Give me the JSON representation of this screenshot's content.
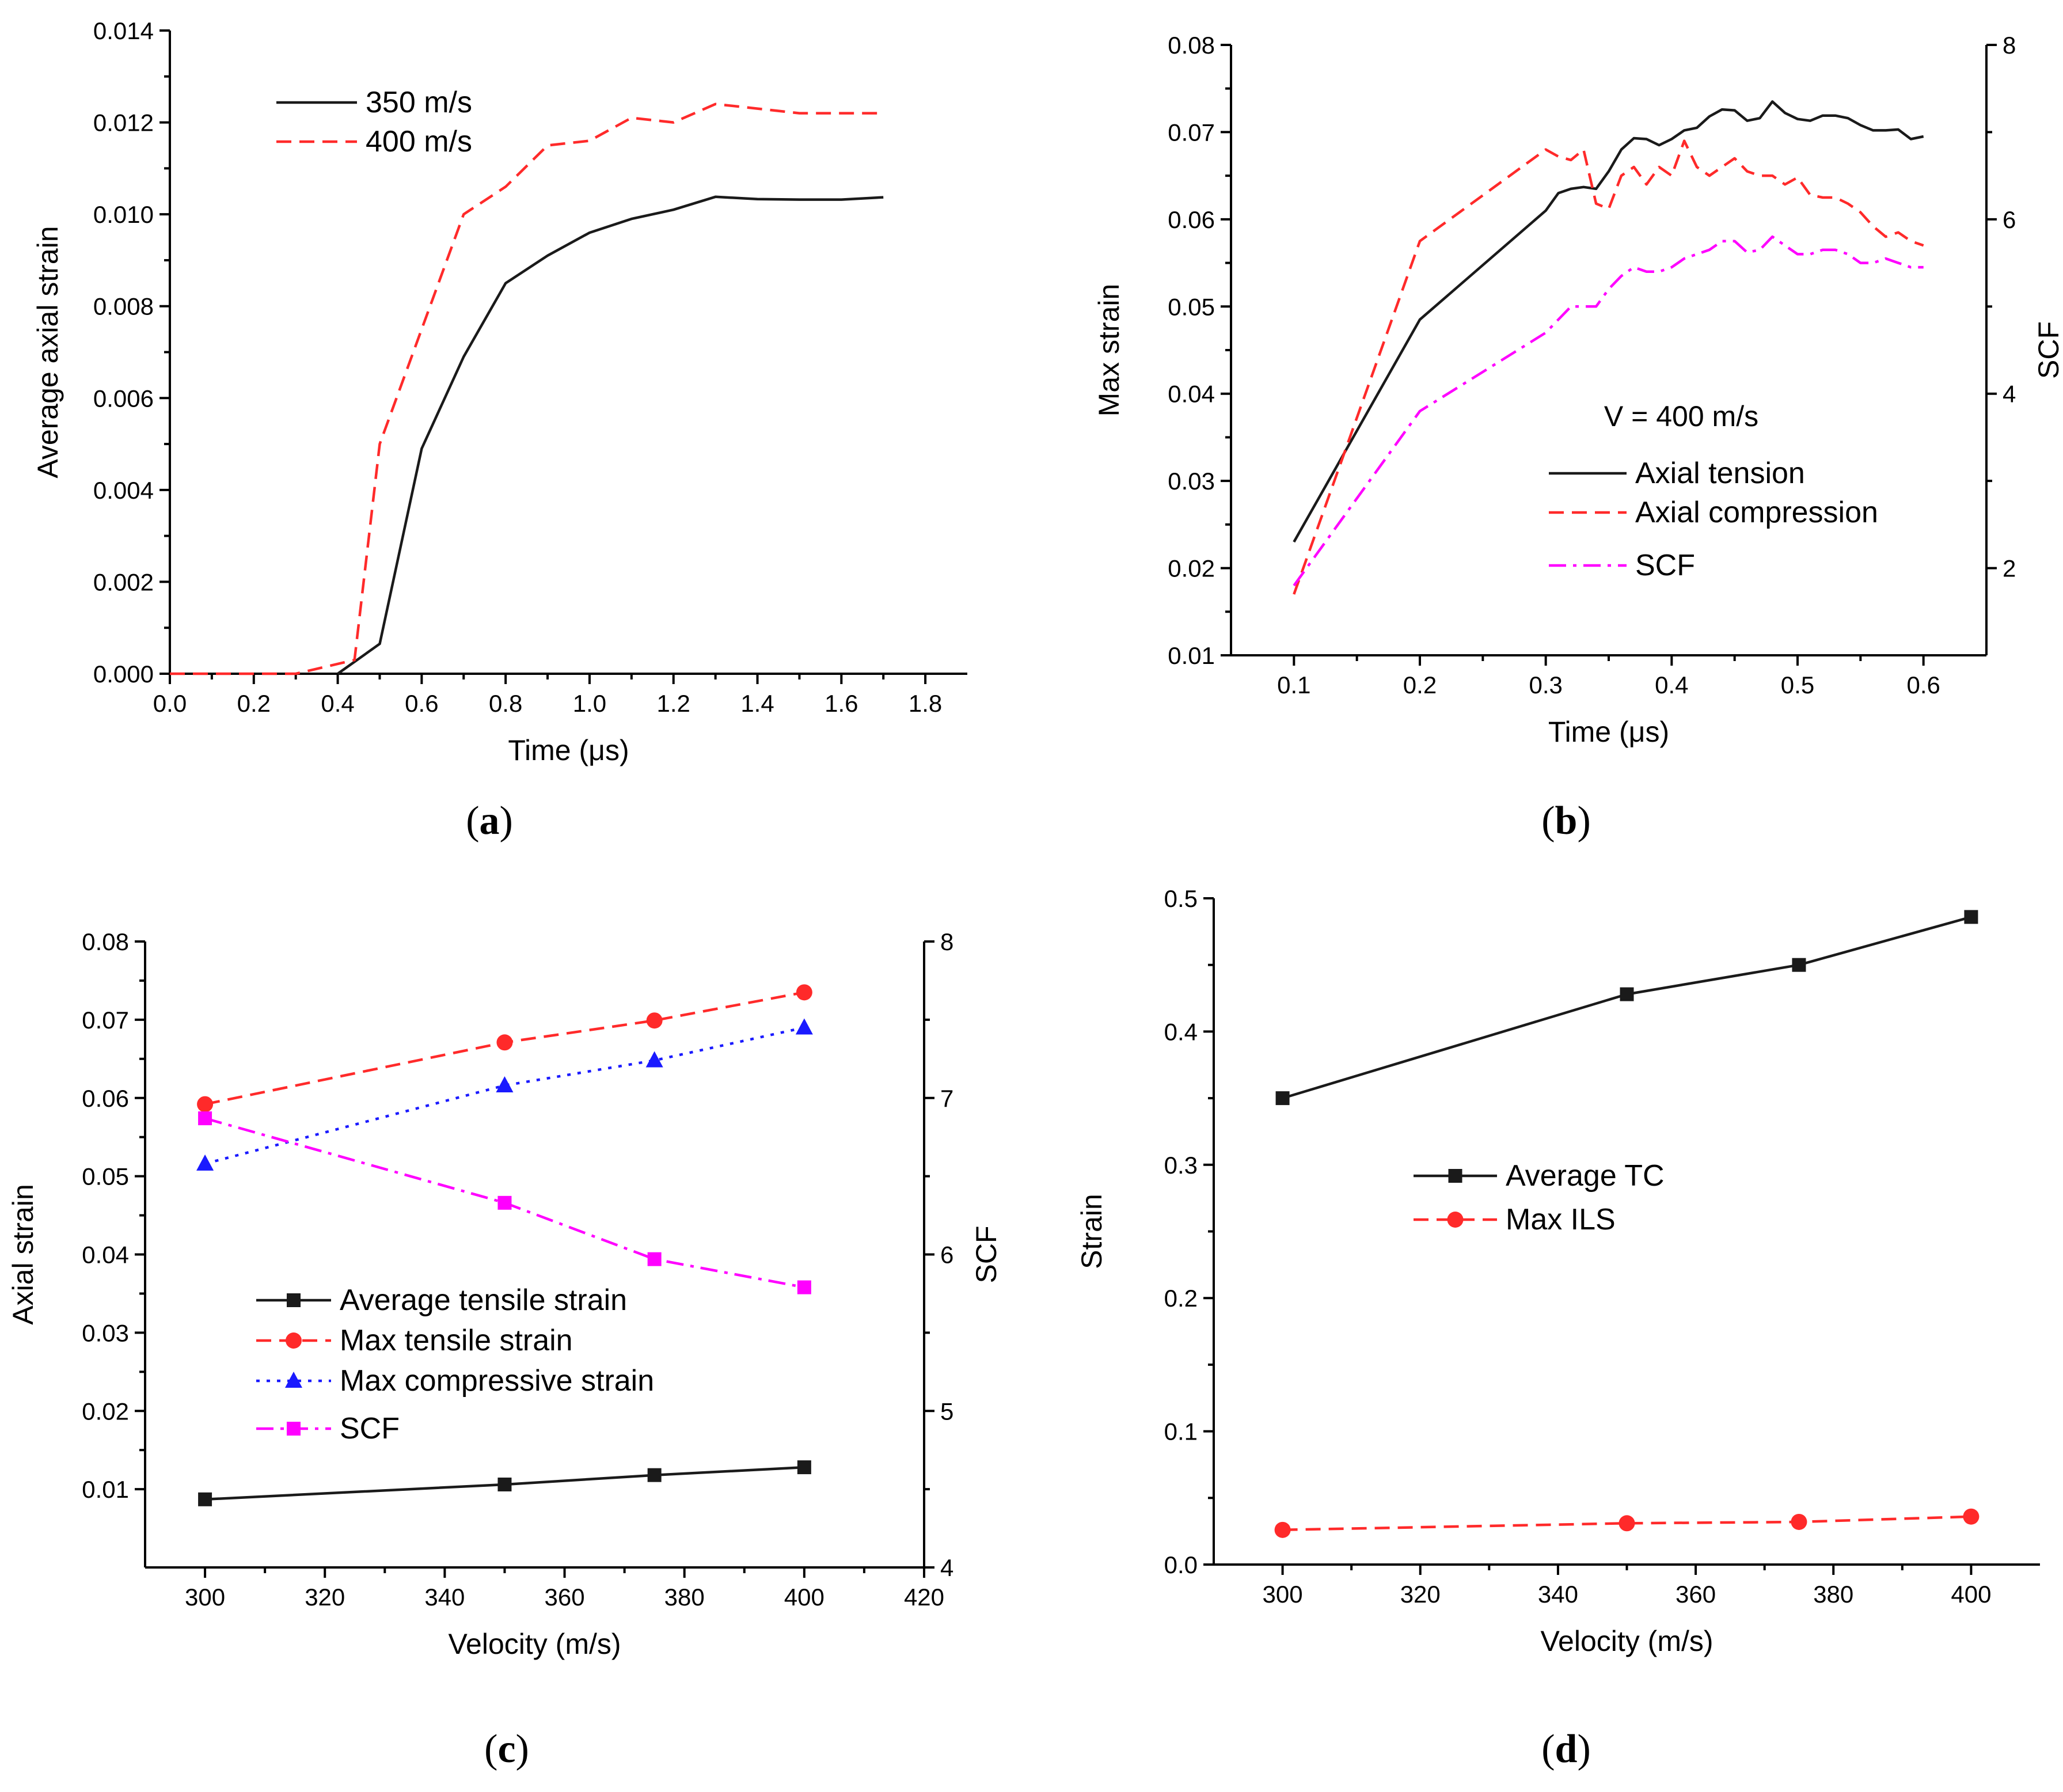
{
  "figure": {
    "panel_labels": [
      "a",
      "b",
      "c",
      "d"
    ]
  },
  "colors": {
    "black": "#1a1a1a",
    "red": "#ff2a2a",
    "blue": "#1a1aff",
    "magenta": "#ff00ff"
  },
  "chart_data": [
    {
      "id": "a",
      "type": "line",
      "xlabel": "Time (μs)",
      "ylabel": "Average axial strain",
      "xlim": [
        0,
        1.9
      ],
      "ylim": [
        0,
        0.014
      ],
      "xticks": [
        "0.0",
        "0.2",
        "0.4",
        "0.6",
        "0.8",
        "1.0",
        "1.2",
        "1.4",
        "1.6",
        "1.8"
      ],
      "yticks": [
        "0.000",
        "0.002",
        "0.004",
        "0.006",
        "0.008",
        "0.010",
        "0.012",
        "0.014"
      ],
      "series": [
        {
          "name": "350 m/s",
          "color": "#1a1a1a",
          "dash": "solid",
          "x": [
            0.4,
            0.5,
            0.6,
            0.7,
            0.8,
            0.9,
            1.0,
            1.1,
            1.2,
            1.3,
            1.4,
            1.5,
            1.6,
            1.7
          ],
          "y": [
            0,
            0.00065,
            0.0049,
            0.0069,
            0.0085,
            0.0091,
            0.0096,
            0.0099,
            0.0101,
            0.01038,
            0.01033,
            0.01032,
            0.01032,
            0.01037
          ]
        },
        {
          "name": "400 m/s",
          "color": "#ff2a2a",
          "dash": "dashed",
          "x": [
            0,
            0.1,
            0.2,
            0.3,
            0.44,
            0.5,
            0.6,
            0.7,
            0.8,
            0.9,
            1.0,
            1.1,
            1.2,
            1.3,
            1.4,
            1.5,
            1.6,
            1.7
          ],
          "y": [
            0,
            0,
            0,
            0,
            0.0003,
            0.005,
            0.0075,
            0.01,
            0.0106,
            0.0115,
            0.0116,
            0.0121,
            0.012,
            0.0124,
            0.0123,
            0.0122,
            0.0122,
            0.0122
          ]
        }
      ]
    },
    {
      "id": "b",
      "type": "line",
      "xlabel": "Time (μs)",
      "ylabel": "Max strain",
      "y2label": "SCF",
      "annotation": "V = 400 m/s",
      "xlim": [
        0.05,
        0.65
      ],
      "ylim": [
        0.01,
        0.08
      ],
      "y2lim": [
        1,
        8
      ],
      "xticks": [
        "0.1",
        "0.2",
        "0.3",
        "0.4",
        "0.5",
        "0.6"
      ],
      "yticks": [
        "0.01",
        "0.02",
        "0.03",
        "0.04",
        "0.05",
        "0.06",
        "0.07",
        "0.08"
      ],
      "y2ticks": [
        "2",
        "4",
        "6",
        "8"
      ],
      "series": [
        {
          "name": "Axial tension",
          "axis": "left",
          "color": "#1a1a1a",
          "dash": "solid",
          "x": [
            0.1,
            0.2,
            0.3,
            0.31,
            0.32,
            0.33,
            0.34,
            0.35,
            0.36,
            0.37,
            0.38,
            0.39,
            0.4,
            0.41,
            0.42,
            0.43,
            0.44,
            0.45,
            0.46,
            0.47,
            0.48,
            0.49,
            0.5,
            0.51,
            0.52,
            0.53,
            0.54,
            0.55,
            0.56,
            0.57,
            0.58,
            0.59,
            0.6
          ],
          "y": [
            0.023,
            0.0485,
            0.061,
            0.063,
            0.0635,
            0.0637,
            0.0635,
            0.0655,
            0.068,
            0.0693,
            0.0692,
            0.0685,
            0.0692,
            0.0702,
            0.0705,
            0.0718,
            0.0726,
            0.0725,
            0.0713,
            0.0716,
            0.0735,
            0.0722,
            0.0715,
            0.0713,
            0.0719,
            0.0719,
            0.0716,
            0.0708,
            0.0702,
            0.0702,
            0.0703,
            0.0692,
            0.0695
          ]
        },
        {
          "name": "Axial compression",
          "axis": "left",
          "color": "#ff2a2a",
          "dash": "dashed",
          "x": [
            0.1,
            0.2,
            0.3,
            0.31,
            0.32,
            0.33,
            0.34,
            0.35,
            0.36,
            0.37,
            0.38,
            0.39,
            0.4,
            0.41,
            0.42,
            0.43,
            0.44,
            0.45,
            0.46,
            0.47,
            0.48,
            0.49,
            0.5,
            0.51,
            0.52,
            0.53,
            0.54,
            0.55,
            0.56,
            0.57,
            0.58,
            0.59,
            0.6
          ],
          "y": [
            0.017,
            0.0575,
            0.068,
            0.0672,
            0.0668,
            0.068,
            0.0618,
            0.0612,
            0.065,
            0.066,
            0.064,
            0.066,
            0.065,
            0.069,
            0.066,
            0.065,
            0.066,
            0.067,
            0.0655,
            0.065,
            0.065,
            0.064,
            0.0648,
            0.0628,
            0.0625,
            0.0625,
            0.0618,
            0.0608,
            0.0592,
            0.058,
            0.0585,
            0.0575,
            0.057
          ]
        },
        {
          "name": "SCF",
          "axis": "right",
          "color": "#ff00ff",
          "dash": "dashdot",
          "x": [
            0.1,
            0.2,
            0.3,
            0.31,
            0.32,
            0.33,
            0.34,
            0.35,
            0.36,
            0.37,
            0.38,
            0.39,
            0.4,
            0.41,
            0.42,
            0.43,
            0.44,
            0.45,
            0.46,
            0.47,
            0.48,
            0.49,
            0.5,
            0.51,
            0.52,
            0.53,
            0.54,
            0.55,
            0.56,
            0.57,
            0.58,
            0.59,
            0.6
          ],
          "y": [
            1.8,
            3.8,
            4.7,
            4.85,
            5.0,
            5.0,
            5.0,
            5.2,
            5.35,
            5.45,
            5.4,
            5.4,
            5.45,
            5.55,
            5.6,
            5.65,
            5.75,
            5.75,
            5.62,
            5.65,
            5.8,
            5.7,
            5.6,
            5.6,
            5.65,
            5.65,
            5.6,
            5.5,
            5.5,
            5.55,
            5.5,
            5.45,
            5.45
          ]
        }
      ]
    },
    {
      "id": "c",
      "type": "line",
      "xlabel": "Velocity (m/s)",
      "ylabel": "Axial strain",
      "y2label": "SCF",
      "xlim": [
        290,
        420
      ],
      "ylim": [
        0,
        0.08
      ],
      "y2lim": [
        4,
        8
      ],
      "xticks": [
        "300",
        "320",
        "340",
        "360",
        "380",
        "400",
        "420"
      ],
      "yticks": [
        "0.01",
        "0.02",
        "0.03",
        "0.04",
        "0.05",
        "0.06",
        "0.07",
        "0.08"
      ],
      "y2ticks": [
        "4",
        "5",
        "6",
        "7",
        "8"
      ],
      "series": [
        {
          "name": "Average tensile strain",
          "axis": "left",
          "color": "#1a1a1a",
          "dash": "solid",
          "marker": "square",
          "x": [
            300,
            350,
            375,
            400
          ],
          "y": [
            0.0087,
            0.0106,
            0.0118,
            0.0128
          ]
        },
        {
          "name": "Max tensile strain",
          "axis": "left",
          "color": "#ff2a2a",
          "dash": "dashed",
          "marker": "circle",
          "x": [
            300,
            350,
            375,
            400
          ],
          "y": [
            0.0592,
            0.0671,
            0.0699,
            0.0735
          ]
        },
        {
          "name": "Max compressive strain",
          "axis": "left",
          "color": "#1a1aff",
          "dash": "dotted",
          "marker": "triangle",
          "x": [
            300,
            350,
            375,
            400
          ],
          "y": [
            0.0516,
            0.0616,
            0.0648,
            0.069
          ]
        },
        {
          "name": "SCF",
          "axis": "right",
          "color": "#ff00ff",
          "dash": "dashdot",
          "marker": "square",
          "x": [
            300,
            350,
            375,
            400
          ],
          "y": [
            6.87,
            6.33,
            5.97,
            5.79
          ]
        }
      ]
    },
    {
      "id": "d",
      "type": "line",
      "xlabel": "Velocity (m/s)",
      "ylabel": "Strain",
      "xlim": [
        290,
        410
      ],
      "ylim": [
        0,
        0.5
      ],
      "xticks": [
        "300",
        "320",
        "340",
        "360",
        "380",
        "400"
      ],
      "yticks": [
        "0.0",
        "0.1",
        "0.2",
        "0.3",
        "0.4",
        "0.5"
      ],
      "series": [
        {
          "name": "Average TC",
          "color": "#1a1a1a",
          "dash": "solid",
          "marker": "square",
          "x": [
            300,
            350,
            375,
            400
          ],
          "y": [
            0.35,
            0.428,
            0.45,
            0.486
          ]
        },
        {
          "name": "Max ILS",
          "color": "#ff2a2a",
          "dash": "dashed",
          "marker": "circle",
          "x": [
            300,
            350,
            375,
            400
          ],
          "y": [
            0.026,
            0.031,
            0.032,
            0.036
          ]
        }
      ]
    }
  ]
}
